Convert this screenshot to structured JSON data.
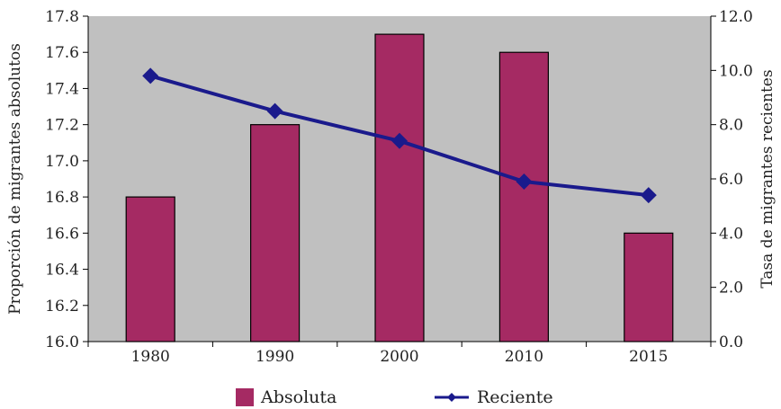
{
  "chart_data": {
    "type": "bar",
    "categories": [
      "1980",
      "1990",
      "2000",
      "2010",
      "2015"
    ],
    "series": [
      {
        "name": "Absoluta",
        "type": "bar",
        "axis": "left",
        "values": [
          16.8,
          17.2,
          17.7,
          17.6,
          16.6
        ],
        "color": "#A52A63"
      },
      {
        "name": "Reciente",
        "type": "line",
        "axis": "right",
        "values": [
          9.8,
          8.5,
          7.4,
          5.9,
          5.4
        ],
        "color": "#1A1A8C"
      }
    ],
    "ylabel": "Proporción de migrantes absolutos",
    "y2label": "Tasa de migrantes recientes",
    "ylim": [
      16.0,
      17.8
    ],
    "y2lim": [
      0.0,
      12.0
    ],
    "yticks": [
      "16.0",
      "16.2",
      "16.4",
      "16.6",
      "16.8",
      "17.0",
      "17.2",
      "17.4",
      "17.6",
      "17.8"
    ],
    "y2ticks": [
      "0.0",
      "2.0",
      "4.0",
      "6.0",
      "8.0",
      "10.0",
      "12.0"
    ],
    "plot_background": "#C0C0C0",
    "grid": false,
    "legend_position": "bottom"
  }
}
